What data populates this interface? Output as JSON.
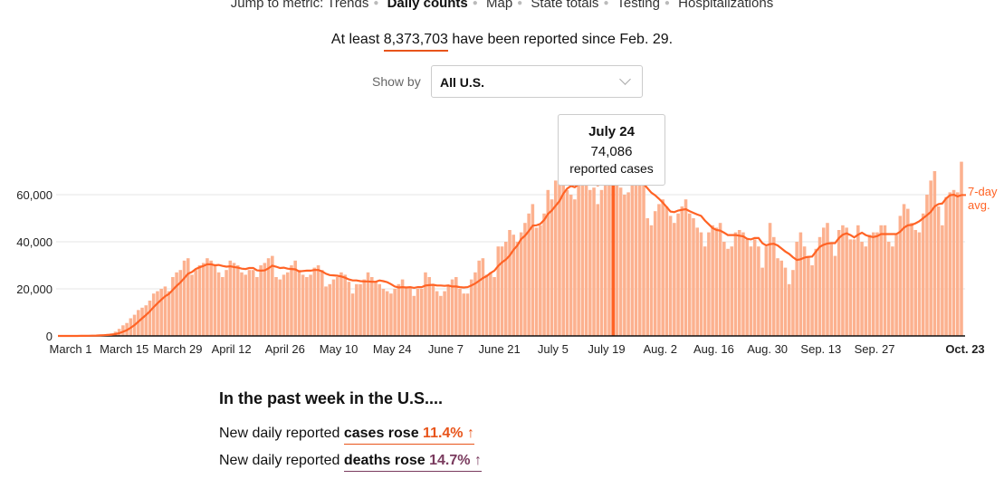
{
  "nav": {
    "label": "Jump to metric:",
    "items": [
      "Trends",
      "Daily counts",
      "Map",
      "State totals",
      "Testing",
      "Hospitalizations"
    ],
    "current": "Daily counts"
  },
  "summary": {
    "prefix": "At least",
    "total": "8,373,703",
    "suffix": "have been reported since Feb. 29."
  },
  "show_by": {
    "label": "Show by",
    "value": "All U.S."
  },
  "tooltip": {
    "date": "July 24",
    "value": "74,086",
    "unit": "reported cases"
  },
  "colors": {
    "bar": "#fcb18f",
    "line": "#ff6325",
    "accent": "#e8541a",
    "deaths": "#7a3b5e",
    "highlight": "#ff6325"
  },
  "chart_data": {
    "type": "bar",
    "title": "Daily reported cases",
    "start_date": "March 1",
    "ylim": [
      0,
      75000
    ],
    "yticks": [
      0,
      20000,
      40000,
      60000
    ],
    "ytick_labels": [
      "0",
      "20,000",
      "40,000",
      "60,000"
    ],
    "xtick_labels": [
      "March 1",
      "March 15",
      "March 29",
      "April 12",
      "April 26",
      "May 10",
      "May 24",
      "June 7",
      "June 21",
      "July 5",
      "July 19",
      "Aug. 2",
      "Aug. 16",
      "Aug. 30",
      "Sep. 13",
      "Sep. 27",
      "Oct. 23"
    ],
    "xtick_days": [
      0,
      14,
      28,
      42,
      56,
      70,
      84,
      98,
      112,
      126,
      140,
      154,
      168,
      182,
      196,
      210,
      236
    ],
    "highlight_day": 145,
    "avg_label": [
      "7-day",
      "avg."
    ],
    "values_thousands": [
      0,
      0,
      0,
      0,
      0,
      0.1,
      0.1,
      0.1,
      0.2,
      0.3,
      0.4,
      0.5,
      0.6,
      0.8,
      1.1,
      1.8,
      3,
      4.5,
      5.5,
      7.5,
      9,
      11,
      12,
      13,
      15,
      18,
      19,
      20,
      21,
      19,
      25,
      27,
      28,
      32,
      33,
      26,
      28,
      30,
      31,
      33,
      32,
      30,
      27,
      25,
      28,
      32,
      31,
      30,
      27,
      26,
      28,
      28,
      25,
      30,
      31,
      33,
      34,
      25,
      24,
      26,
      27,
      30,
      32,
      28,
      26,
      25,
      26,
      29,
      30,
      28,
      21,
      22,
      24,
      25,
      27,
      26,
      23,
      18,
      22,
      22,
      24,
      27,
      25,
      23,
      22,
      20,
      19,
      18,
      20,
      22,
      24,
      21,
      21,
      17,
      20,
      20,
      27,
      25,
      22,
      19,
      17,
      19,
      21,
      24,
      25,
      20,
      18,
      18,
      24,
      27,
      32,
      33,
      26,
      27,
      25,
      38,
      38,
      40,
      45,
      43,
      40,
      44,
      48,
      52,
      56,
      46,
      47,
      52,
      62,
      58,
      66,
      70,
      68,
      62,
      60,
      58,
      67,
      72,
      70,
      62,
      63,
      56,
      62,
      70,
      72,
      74.086,
      64,
      63,
      60,
      61,
      66,
      70,
      68,
      64,
      50,
      47,
      53,
      56,
      58,
      55,
      51,
      48,
      52,
      55,
      58,
      52,
      50,
      46,
      44,
      38,
      44,
      47,
      46,
      48,
      40,
      37,
      38,
      44,
      45,
      44,
      41,
      38,
      41,
      38,
      29,
      38,
      48,
      42,
      33,
      32,
      29,
      22,
      28,
      40,
      44,
      38,
      34,
      30,
      37,
      42,
      46,
      48,
      39,
      34,
      45,
      47,
      46,
      41,
      41,
      47,
      40,
      38,
      43,
      44,
      44,
      47,
      47,
      40,
      38,
      43,
      51,
      56,
      54,
      48,
      45,
      44,
      52,
      60,
      66,
      70,
      55,
      47,
      59,
      61,
      62,
      61,
      74
    ]
  },
  "week": {
    "title": "In the past week in the U.S....",
    "cases": {
      "prefix": "New daily reported",
      "bold": "cases rose",
      "pct": "11.4%",
      "arrow": "↑"
    },
    "deaths": {
      "prefix": "New daily reported",
      "bold": "deaths rose",
      "pct": "14.7%",
      "arrow": "↑"
    }
  }
}
